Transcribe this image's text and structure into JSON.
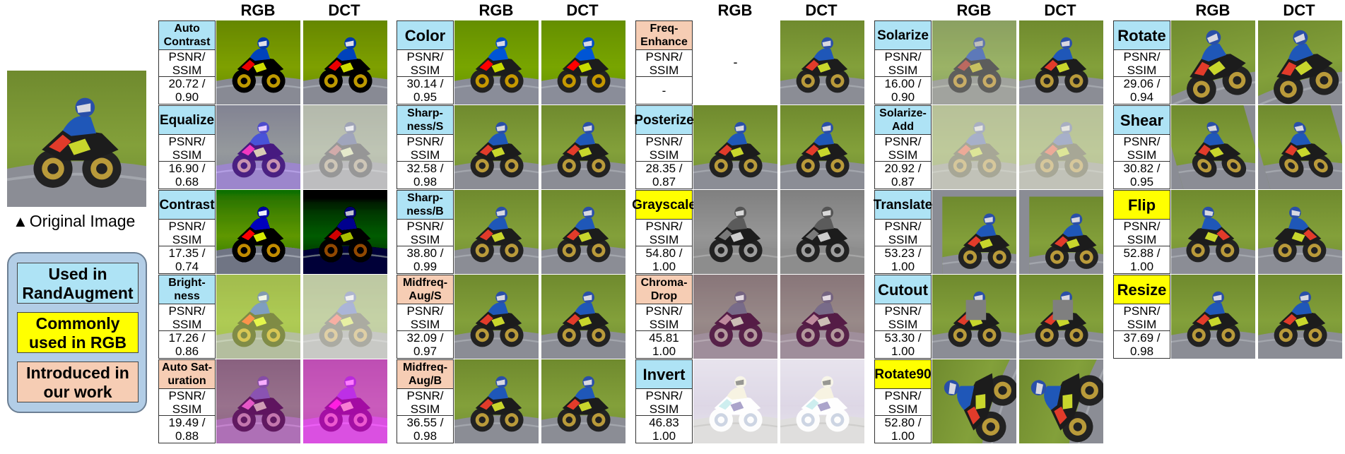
{
  "original_caption": "Original Image",
  "legend": [
    {
      "text": "Used in RandAugment",
      "color": "#aee3f5"
    },
    {
      "text": "Commonly used in RGB",
      "color": "#ffff00"
    },
    {
      "text": "Introduced in our work",
      "color": "#f6cdb4"
    }
  ],
  "column_headers": {
    "rgb": "RGB",
    "dct": "DCT"
  },
  "psnr_ssim_label": "PSNR/ SSIM",
  "groups": [
    {
      "ops": [
        {
          "name": "Auto Contrast",
          "cat": "rand",
          "value": "20.72 / 0.90",
          "rgb": "autocontrast",
          "dct": "autocontrast"
        },
        {
          "name": "Equalize",
          "cat": "rand",
          "value": "16.90 / 0.68",
          "rgb": "equalize",
          "dct": "equalize_dct"
        },
        {
          "name": "Contrast",
          "cat": "rand",
          "value": "17.35 / 0.74",
          "rgb": "contrast",
          "dct": "contrast_dct"
        },
        {
          "name": "Bright-ness",
          "cat": "rand",
          "value": "17.26 / 0.86",
          "rgb": "bright",
          "dct": "bright_dct"
        },
        {
          "name": "Auto Sat-uration",
          "cat": "ours",
          "value": "19.49 / 0.88",
          "rgb": "autosat",
          "dct": "autosat_dct"
        }
      ]
    },
    {
      "ops": [
        {
          "name": "Color",
          "cat": "rand",
          "value": "30.14 / 0.95",
          "rgb": "color",
          "dct": "color"
        },
        {
          "name": "Sharp-ness/S",
          "cat": "rand",
          "value": "32.58 / 0.98",
          "rgb": "normal",
          "dct": "normal"
        },
        {
          "name": "Sharp-ness/B",
          "cat": "rand",
          "value": "38.80 / 0.99",
          "rgb": "normal",
          "dct": "normal"
        },
        {
          "name": "Midfreq-Aug/S",
          "cat": "ours",
          "value": "32.09 / 0.97",
          "rgb": "normal",
          "dct": "normal"
        },
        {
          "name": "Midfreq-Aug/B",
          "cat": "ours",
          "value": "36.55 / 0.98",
          "rgb": "normal",
          "dct": "normal"
        }
      ]
    },
    {
      "ops": [
        {
          "name": "Freq-Enhance",
          "cat": "ours",
          "value": "-",
          "rgb": "none",
          "dct": "normal"
        },
        {
          "name": "Posterize",
          "cat": "rand",
          "value": "28.35 / 0.87",
          "rgb": "normal",
          "dct": "normal"
        },
        {
          "name": "Grayscale",
          "cat": "rgb",
          "value": "54.80 / 1.00",
          "rgb": "gray",
          "dct": "gray"
        },
        {
          "name": "Chroma-Drop",
          "cat": "ours",
          "value": "45.81 1.00",
          "rgb": "chroma",
          "dct": "chroma"
        },
        {
          "name": "Invert",
          "cat": "rand",
          "value": "46.83 1.00",
          "rgb": "invert",
          "dct": "invert"
        }
      ]
    },
    {
      "ops": [
        {
          "name": "Solarize",
          "cat": "rand",
          "value": "16.00 / 0.90",
          "rgb": "solarize",
          "dct": "normal"
        },
        {
          "name": "Solarize-Add",
          "cat": "rand",
          "value": "20.92 / 0.87",
          "rgb": "solarizeadd",
          "dct": "solarizeadd"
        },
        {
          "name": "Translate",
          "cat": "rand",
          "value": "53.23 / 1.00",
          "rgb": "translate",
          "dct": "translate"
        },
        {
          "name": "Cutout",
          "cat": "rand",
          "value": "53.30 / 1.00",
          "rgb": "cutout",
          "dct": "cutout"
        },
        {
          "name": "Rotate90",
          "cat": "rgb",
          "value": "52.80 / 1.00",
          "rgb": "rot90",
          "dct": "rot90"
        }
      ]
    },
    {
      "ops": [
        {
          "name": "Rotate",
          "cat": "rand",
          "value": "29.06 / 0.94",
          "rgb": "rotate",
          "dct": "rotate"
        },
        {
          "name": "Shear",
          "cat": "rand",
          "value": "30.82 / 0.95",
          "rgb": "shear",
          "dct": "shear"
        },
        {
          "name": "Flip",
          "cat": "rgb",
          "value": "52.88 / 1.00",
          "rgb": "flip",
          "dct": "flip"
        },
        {
          "name": "Resize",
          "cat": "rgb",
          "value": "37.69 / 0.98",
          "rgb": "normal",
          "dct": "normal"
        }
      ]
    }
  ]
}
